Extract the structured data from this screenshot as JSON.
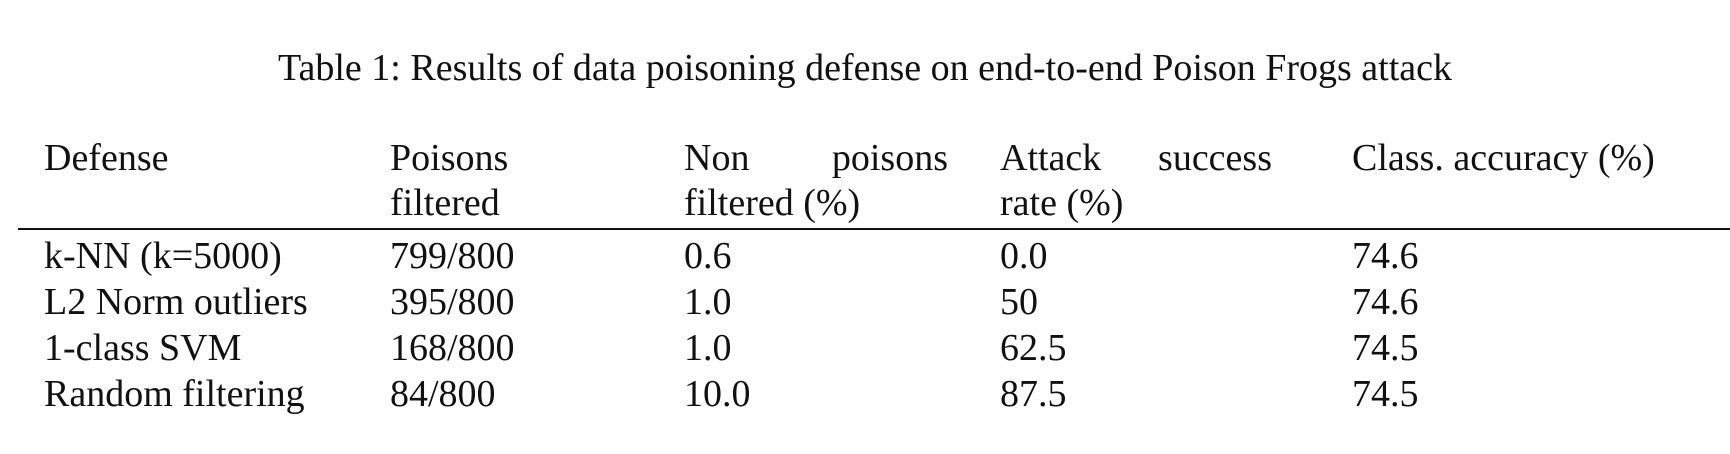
{
  "caption": "Table 1: Results of data poisoning defense on end-to-end Poison Frogs attack",
  "table": {
    "headers": {
      "defense": "Defense",
      "poisons_line1": "Poisons",
      "poisons_line2": "filtered",
      "nonpoisons_word1": "Non",
      "nonpoisons_word2": "poisons",
      "nonpoisons_line2": "filtered (%)",
      "attack_word1": "Attack",
      "attack_word2": "success",
      "attack_line2": "rate (%)",
      "accuracy": "Class. accuracy (%)"
    },
    "rows": [
      {
        "defense": "k-NN (k=5000)",
        "poisons": "799/800",
        "nonpoisons": "0.6",
        "attack": "0.0",
        "accuracy": "74.6"
      },
      {
        "defense": "L2 Norm outliers",
        "poisons": "395/800",
        "nonpoisons": "1.0",
        "attack": "50",
        "accuracy": "74.6"
      },
      {
        "defense": "1-class SVM",
        "poisons": "168/800",
        "nonpoisons": "1.0",
        "attack": "62.5",
        "accuracy": "74.5"
      },
      {
        "defense": "Random filtering",
        "poisons": "84/800",
        "nonpoisons": "10.0",
        "attack": "87.5",
        "accuracy": "74.5"
      }
    ]
  }
}
